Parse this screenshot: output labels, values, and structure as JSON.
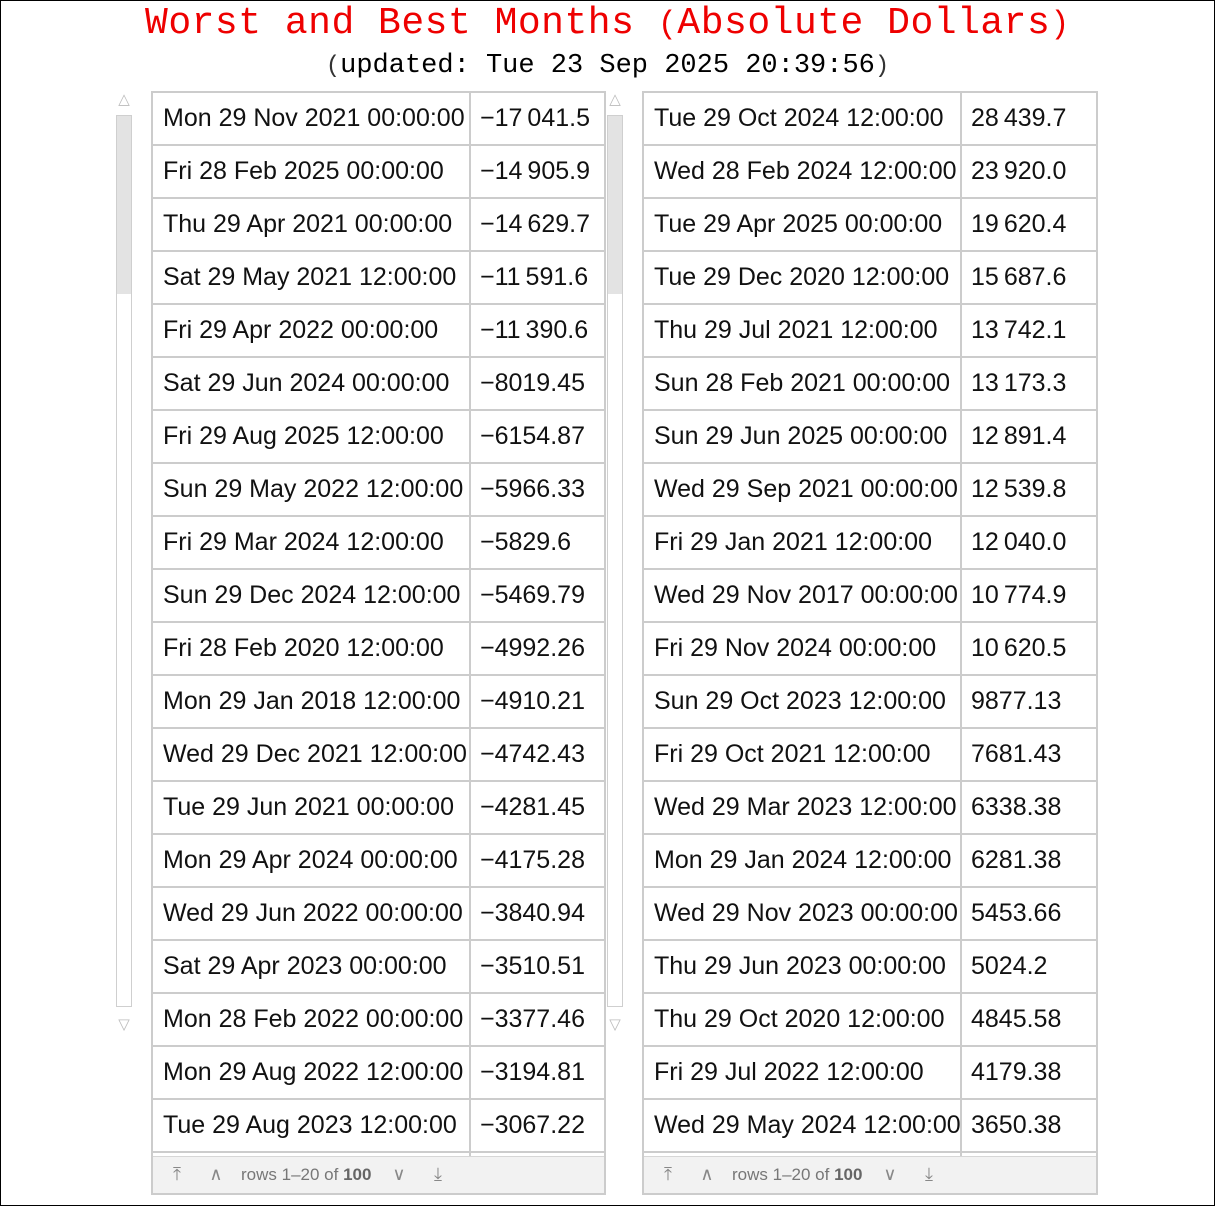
{
  "header": {
    "title": "Worst and Best Months",
    "title_paren": "Absolute Dollars",
    "updated_label": "updated: Tue 23 Sep 2025 20:39:56"
  },
  "tables": [
    {
      "rows": [
        {
          "date": "Mon 29 Nov 2021 00:00:00",
          "value": "−17 041.5"
        },
        {
          "date": "Fri 28 Feb 2025 00:00:00",
          "value": "−14 905.9"
        },
        {
          "date": "Thu 29 Apr 2021 00:00:00",
          "value": "−14 629.7"
        },
        {
          "date": "Sat 29 May 2021 12:00:00",
          "value": "−11 591.6"
        },
        {
          "date": "Fri 29 Apr 2022 00:00:00",
          "value": "−11 390.6"
        },
        {
          "date": "Sat 29 Jun 2024 00:00:00",
          "value": "−8019.45"
        },
        {
          "date": "Fri 29 Aug 2025 12:00:00",
          "value": "−6154.87"
        },
        {
          "date": "Sun 29 May 2022 12:00:00",
          "value": "−5966.33"
        },
        {
          "date": "Fri 29 Mar 2024 12:00:00",
          "value": "−5829.6"
        },
        {
          "date": "Sun 29 Dec 2024 12:00:00",
          "value": "−5469.79"
        },
        {
          "date": "Fri 28 Feb 2020 12:00:00",
          "value": "−4992.26"
        },
        {
          "date": "Mon 29 Jan 2018 12:00:00",
          "value": "−4910.21"
        },
        {
          "date": "Wed 29 Dec 2021 12:00:00",
          "value": "−4742.43"
        },
        {
          "date": "Tue 29 Jun 2021 00:00:00",
          "value": "−4281.45"
        },
        {
          "date": "Mon 29 Apr 2024 00:00:00",
          "value": "−4175.28"
        },
        {
          "date": "Wed 29 Jun 2022 00:00:00",
          "value": "−3840.94"
        },
        {
          "date": "Sat 29 Apr 2023 00:00:00",
          "value": "−3510.51"
        },
        {
          "date": "Mon 28 Feb 2022 00:00:00",
          "value": "−3377.46"
        },
        {
          "date": "Mon 29 Aug 2022 12:00:00",
          "value": "−3194.81"
        },
        {
          "date": "Tue 29 Aug 2023 12:00:00",
          "value": "−3067.22"
        }
      ],
      "footer": {
        "rows_text": "rows 1–20 of ",
        "total": "100"
      }
    },
    {
      "rows": [
        {
          "date": "Tue 29 Oct 2024 12:00:00",
          "value": "28 439.7"
        },
        {
          "date": "Wed 28 Feb 2024 12:00:00",
          "value": "23 920.0"
        },
        {
          "date": "Tue 29 Apr 2025 00:00:00",
          "value": "19 620.4"
        },
        {
          "date": "Tue 29 Dec 2020 12:00:00",
          "value": "15 687.6"
        },
        {
          "date": "Thu 29 Jul 2021 12:00:00",
          "value": "13 742.1"
        },
        {
          "date": "Sun 28 Feb 2021 00:00:00",
          "value": "13 173.3"
        },
        {
          "date": "Sun 29 Jun 2025 00:00:00",
          "value": "12 891.4"
        },
        {
          "date": "Wed 29 Sep 2021 00:00:00",
          "value": "12 539.8"
        },
        {
          "date": "Fri 29 Jan 2021 12:00:00",
          "value": "12 040.0"
        },
        {
          "date": "Wed 29 Nov 2017 00:00:00",
          "value": "10 774.9"
        },
        {
          "date": "Fri 29 Nov 2024 00:00:00",
          "value": "10 620.5"
        },
        {
          "date": "Sun 29 Oct 2023 12:00:00",
          "value": "9877.13"
        },
        {
          "date": "Fri 29 Oct 2021 12:00:00",
          "value": "7681.43"
        },
        {
          "date": "Wed 29 Mar 2023 12:00:00",
          "value": "6338.38"
        },
        {
          "date": "Mon 29 Jan 2024 12:00:00",
          "value": "6281.38"
        },
        {
          "date": "Wed 29 Nov 2023 00:00:00",
          "value": "5453.66"
        },
        {
          "date": "Thu 29 Jun 2023 00:00:00",
          "value": "5024.2"
        },
        {
          "date": "Thu 29 Oct 2020 12:00:00",
          "value": "4845.58"
        },
        {
          "date": "Fri 29 Jul 2022 12:00:00",
          "value": "4179.38"
        },
        {
          "date": "Wed 29 May 2024 12:00:00",
          "value": "3650.38"
        }
      ],
      "footer": {
        "rows_text": "rows 1–20 of ",
        "total": "100"
      }
    }
  ],
  "icons": {
    "scroll_up": "△",
    "scroll_down": "▽",
    "first_page": "⤒",
    "prev_page": "∧",
    "next_page": "∨",
    "last_page": "⤓"
  },
  "colors": {
    "title": "#ee0000",
    "grid": "#cccccc",
    "footer_bg": "#f2f2f2"
  }
}
